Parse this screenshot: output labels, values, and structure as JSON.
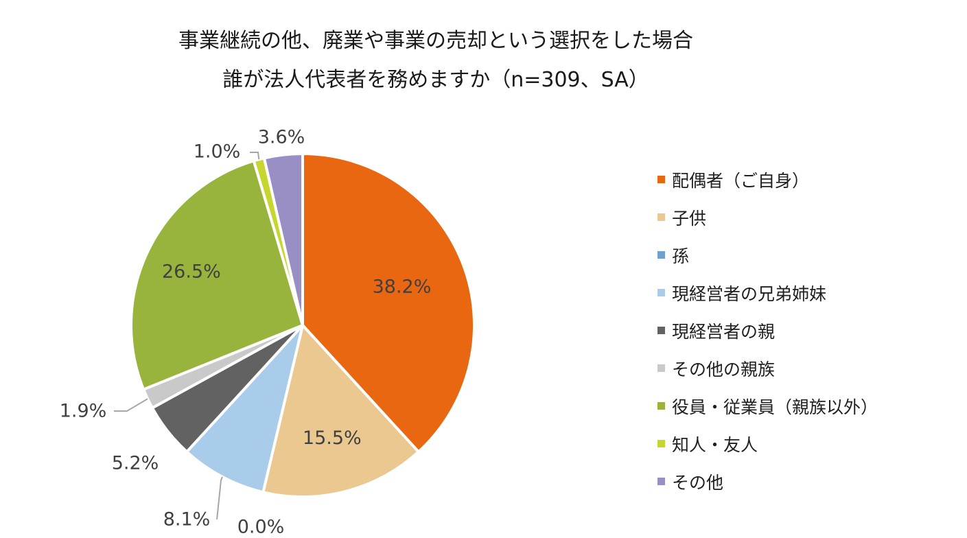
{
  "chart_data": {
    "type": "pie",
    "title": [
      "事業継続の他、廃業や事業の売却という選択をした場合",
      "誰が法人代表者を務めますか（n=309、SA）"
    ],
    "categories": [
      "配偶者（ご自身）",
      "子供",
      "孫",
      "現経営者の兄弟姉妹",
      "現経営者の親",
      "その他の親族",
      "役員・従業員（親族以外）",
      "知人・友人",
      "その他"
    ],
    "values": [
      38.2,
      15.5,
      0.0,
      8.1,
      5.2,
      1.9,
      26.5,
      1.0,
      3.6
    ],
    "data_labels": [
      "38.2%",
      "15.5%",
      "0.0%",
      "8.1%",
      "5.2%",
      "1.9%",
      "26.5%",
      "1.0%",
      "3.6%"
    ],
    "colors": [
      "#E96711",
      "#EAC88F",
      "#6FA0CF",
      "#A8CCEA",
      "#626262",
      "#C9C9C9",
      "#98B43C",
      "#C7D62E",
      "#9A8FC4"
    ],
    "legend_position": "right"
  }
}
